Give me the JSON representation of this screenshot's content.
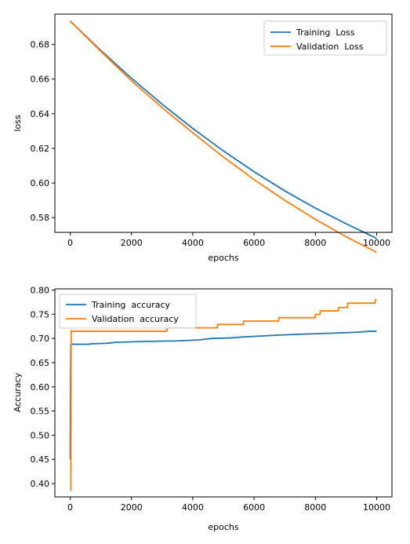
{
  "chart_data": [
    {
      "type": "line",
      "xlabel": "epochs",
      "ylabel": "loss",
      "xlim": [
        -500,
        10500
      ],
      "ylim": [
        0.5715,
        0.6975
      ],
      "xticks": [
        0,
        2000,
        4000,
        6000,
        8000,
        10000
      ],
      "yticks": [
        0.58,
        0.6,
        0.62,
        0.64,
        0.66,
        0.68
      ],
      "xtick_labels": [
        "0",
        "2000",
        "4000",
        "6000",
        "8000",
        "10000"
      ],
      "ytick_labels": [
        "0.58",
        "0.60",
        "0.62",
        "0.64",
        "0.66",
        "0.68"
      ],
      "legend": "top-right",
      "grid": false,
      "series": [
        {
          "name": "Training  Loss",
          "color": "#1f77b4",
          "x": [
            0,
            1000,
            2000,
            3000,
            4000,
            5000,
            6000,
            7000,
            8000,
            9000,
            10000
          ],
          "y": [
            0.6935,
            0.6765,
            0.6605,
            0.6455,
            0.6315,
            0.6185,
            0.6065,
            0.5955,
            0.5855,
            0.5765,
            0.568
          ]
        },
        {
          "name": "Validation  Loss",
          "color": "#ff7f0e",
          "x": [
            0,
            1000,
            2000,
            3000,
            4000,
            5000,
            6000,
            7000,
            8000,
            9000,
            10000
          ],
          "y": [
            0.6935,
            0.676,
            0.659,
            0.6435,
            0.629,
            0.615,
            0.602,
            0.59,
            0.579,
            0.569,
            0.56
          ]
        }
      ]
    },
    {
      "type": "line",
      "xlabel": "epochs",
      "ylabel": "Accuracy",
      "xlim": [
        -500,
        10500
      ],
      "ylim": [
        0.3725,
        0.8025
      ],
      "xticks": [
        0,
        2000,
        4000,
        6000,
        8000,
        10000
      ],
      "yticks": [
        0.4,
        0.45,
        0.5,
        0.55,
        0.6,
        0.65,
        0.7,
        0.75,
        0.8
      ],
      "xtick_labels": [
        "0",
        "2000",
        "4000",
        "6000",
        "8000",
        "10000"
      ],
      "ytick_labels": [
        "0.40",
        "0.45",
        "0.50",
        "0.55",
        "0.60",
        "0.65",
        "0.70",
        "0.75",
        "0.80"
      ],
      "legend": "top-left",
      "grid": false,
      "series": [
        {
          "name": "Training  accuracy",
          "color": "#1f77b4",
          "x": [
            0,
            10,
            20,
            50,
            600,
            700,
            1200,
            1500,
            2500,
            3500,
            4200,
            4600,
            5200,
            5600,
            6200,
            6800,
            7600,
            8600,
            9400,
            9800,
            10000
          ],
          "y": [
            0.45,
            0.62,
            0.687,
            0.688,
            0.688,
            0.689,
            0.69,
            0.692,
            0.694,
            0.695,
            0.697,
            0.7,
            0.701,
            0.703,
            0.705,
            0.707,
            0.709,
            0.711,
            0.713,
            0.715,
            0.715
          ]
        },
        {
          "name": "Validation  accuracy",
          "color": "#ff7f0e",
          "x": [
            0,
            20,
            30,
            3150,
            3160,
            4800,
            4810,
            5650,
            5660,
            6800,
            6810,
            8000,
            8010,
            8150,
            8160,
            8750,
            8760,
            9050,
            9060,
            9950,
            9960,
            10000
          ],
          "y": [
            0.386,
            0.386,
            0.715,
            0.715,
            0.722,
            0.722,
            0.729,
            0.729,
            0.736,
            0.736,
            0.743,
            0.743,
            0.75,
            0.75,
            0.757,
            0.757,
            0.764,
            0.764,
            0.773,
            0.773,
            0.78,
            0.78
          ]
        }
      ]
    }
  ]
}
